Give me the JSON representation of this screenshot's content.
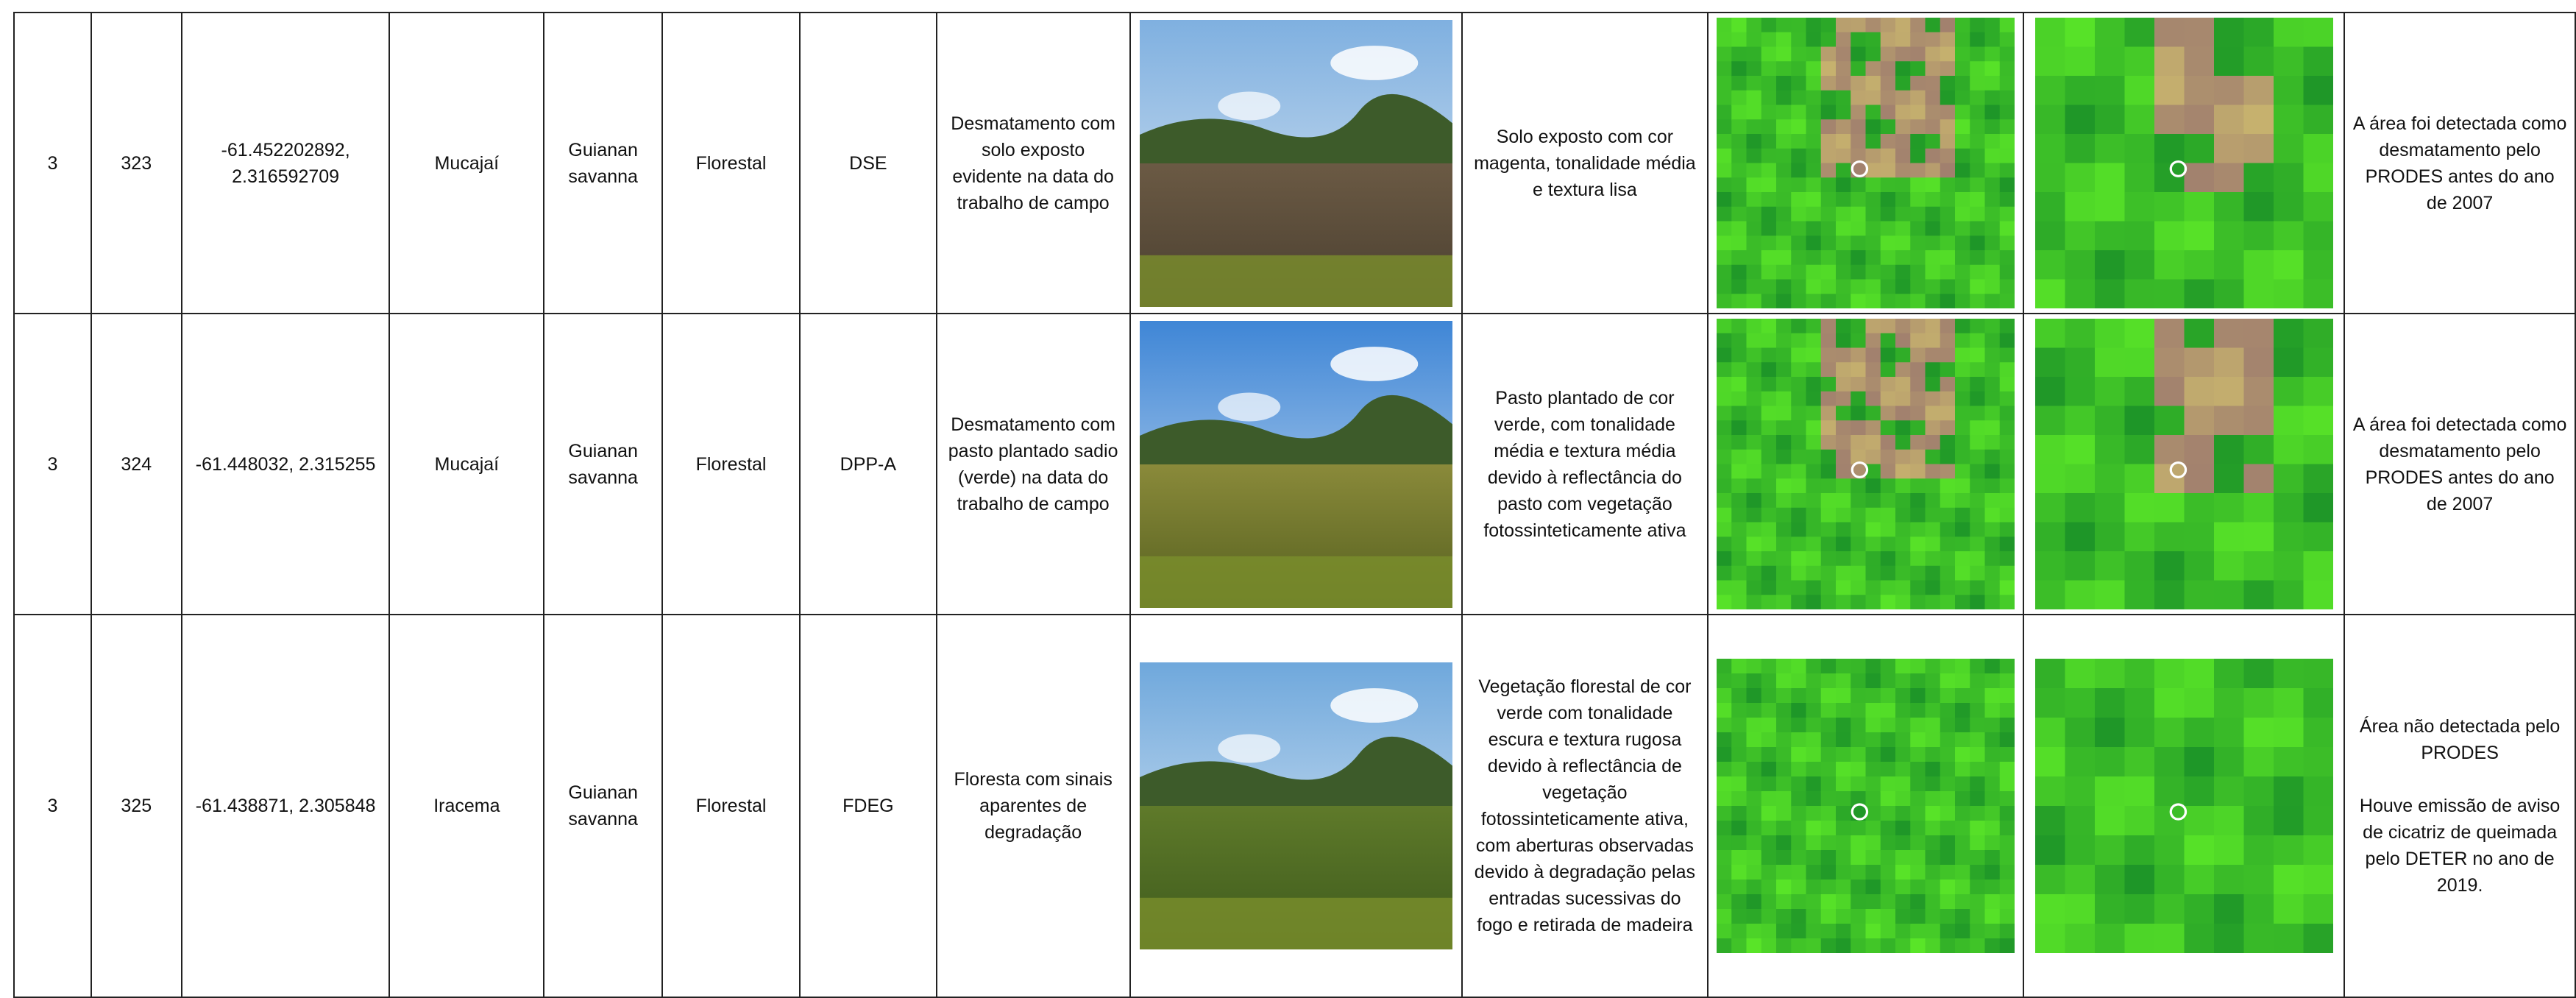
{
  "table": {
    "rows": [
      {
        "cells": [
          "3",
          "323",
          "-61.452202892, 2.316592709",
          "Mucajaí",
          "Guianan savanna",
          "Florestal",
          "DSE",
          "Desmatamento com solo exposto evidente na data do trabalho de campo"
        ],
        "interpretation": "Solo exposto com cor magenta, tonalidade média e textura lisa",
        "notes": [
          "A área foi detectada como desmatamento pelo PRODES antes do ano de 2007"
        ]
      },
      {
        "cells": [
          "3",
          "324",
          "-61.448032, 2.315255",
          "Mucajaí",
          "Guianan savanna",
          "Florestal",
          "DPP-A",
          "Desmatamento com pasto plantado sadio (verde) na data do trabalho de campo"
        ],
        "interpretation": "Pasto plantado de cor verde, com tonalidade média e textura média devido à reflectância do pasto com vegetação fotossinteticamente ativa",
        "notes": [
          "A área foi detectada como desmatamento pelo PRODES antes do ano de 2007"
        ]
      },
      {
        "cells": [
          "3",
          "325",
          "-61.438871, 2.305848",
          "Iracema",
          "Guianan savanna",
          "Florestal",
          "FDEG",
          "Floresta com sinais aparentes de degradação"
        ],
        "interpretation": "Vegetação florestal de cor verde com tonalidade escura e textura rugosa devido à reflectância de vegetação fotossinteticamente ativa, com aberturas observadas devido à degradação pelas entradas sucessivas do fogo e retirada de madeira",
        "notes": [
          "Área não detectada pelo PRODES",
          "Houve emissão de aviso de cicatriz de queimada pelo DETER no ano de 2019."
        ]
      }
    ]
  }
}
